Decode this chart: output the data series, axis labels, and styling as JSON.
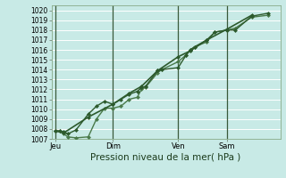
{
  "xlabel": "Pression niveau de la mer( hPa )",
  "ylim": [
    1007,
    1020.5
  ],
  "yticks": [
    1007,
    1008,
    1009,
    1010,
    1011,
    1012,
    1013,
    1014,
    1015,
    1016,
    1017,
    1018,
    1019,
    1020
  ],
  "day_labels": [
    "Jeu",
    "Dim",
    "Ven",
    "Sam"
  ],
  "day_positions": [
    0.5,
    7.5,
    15.5,
    21.5
  ],
  "xlim": [
    0,
    28
  ],
  "background_color": "#c8eae6",
  "grid_color": "#ffffff",
  "line_dark": "#2d5a2d",
  "line_light": "#4a7a4a",
  "series1_x": [
    0.5,
    1.0,
    1.5,
    2.0,
    3.0,
    4.5,
    5.5,
    6.5,
    7.5,
    8.5,
    9.5,
    10.5,
    11.0,
    11.5,
    13.0,
    13.5,
    15.5,
    16.5,
    17.0,
    17.5,
    19.0,
    20.0,
    21.5,
    22.5,
    24.5,
    26.5
  ],
  "series1_y": [
    1007.8,
    1007.8,
    1007.7,
    1007.5,
    1007.9,
    1009.5,
    1010.3,
    1010.8,
    1010.5,
    1011.0,
    1011.5,
    1011.8,
    1012.2,
    1012.3,
    1013.9,
    1014.0,
    1014.2,
    1015.5,
    1016.0,
    1016.3,
    1017.0,
    1017.8,
    1018.0,
    1018.0,
    1019.4,
    1019.7
  ],
  "series2_x": [
    0.5,
    1.0,
    1.5,
    2.0,
    3.0,
    4.5,
    5.5,
    6.5,
    7.5,
    8.5,
    9.5,
    10.5,
    11.0,
    11.5,
    13.0,
    13.5,
    15.5,
    16.5,
    17.0,
    17.5,
    19.0,
    20.0,
    21.5,
    22.5,
    24.5,
    26.5
  ],
  "series2_y": [
    1007.8,
    1007.8,
    1007.5,
    1007.2,
    1007.1,
    1007.2,
    1009.0,
    1010.1,
    1010.1,
    1010.3,
    1011.0,
    1011.2,
    1012.0,
    1012.2,
    1013.7,
    1014.0,
    1014.8,
    1015.5,
    1016.0,
    1016.3,
    1016.8,
    1017.8,
    1018.0,
    1018.2,
    1019.3,
    1019.5
  ],
  "series3_x": [
    0.5,
    1.5,
    4.5,
    7.5,
    9.5,
    11.0,
    13.0,
    15.5,
    17.0,
    19.0,
    21.5,
    24.5
  ],
  "series3_y": [
    1007.8,
    1007.6,
    1009.2,
    1010.5,
    1011.6,
    1012.3,
    1013.9,
    1015.3,
    1015.9,
    1017.0,
    1018.1,
    1019.5
  ],
  "marker_size": 2.5,
  "line_width": 1.0,
  "tick_fontsize": 5.5,
  "xlabel_fontsize": 7.5
}
